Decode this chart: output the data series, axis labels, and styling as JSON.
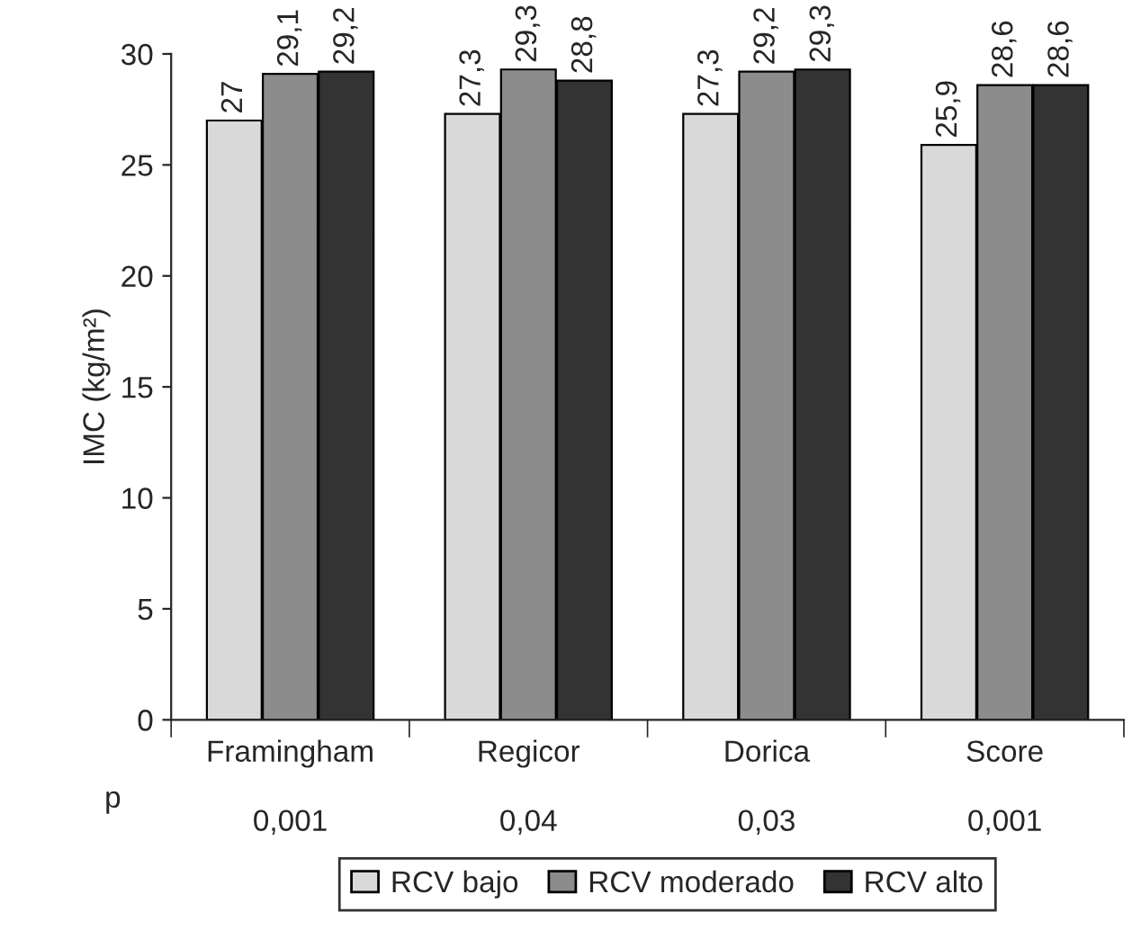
{
  "chart_data": {
    "type": "bar",
    "ylabel": "IMC (kg/m²)",
    "categories": [
      "Framingham",
      "Regicor",
      "Dorica",
      "Score"
    ],
    "series": [
      {
        "name": "RCV bajo",
        "color": "#d9d9d9",
        "values": [
          27,
          27.3,
          27.3,
          25.9
        ],
        "value_labels": [
          "27",
          "27,3",
          "27,3",
          "25,9"
        ]
      },
      {
        "name": "RCV moderado",
        "color": "#8c8c8c",
        "values": [
          29.1,
          29.3,
          29.2,
          28.6
        ],
        "value_labels": [
          "29,1",
          "29,3",
          "29,2",
          "28,6"
        ]
      },
      {
        "name": "RCV alto",
        "color": "#333333",
        "values": [
          29.2,
          28.8,
          29.3,
          28.6
        ],
        "value_labels": [
          "29,2",
          "28,8",
          "29,3",
          "28,6"
        ]
      }
    ],
    "ylim": [
      0,
      30
    ],
    "yticks": [
      0,
      5,
      10,
      15,
      20,
      25,
      30
    ],
    "legend": "bottom",
    "annotations": [
      "p",
      "0,001",
      "0,04",
      "0,03",
      "0,001"
    ]
  }
}
